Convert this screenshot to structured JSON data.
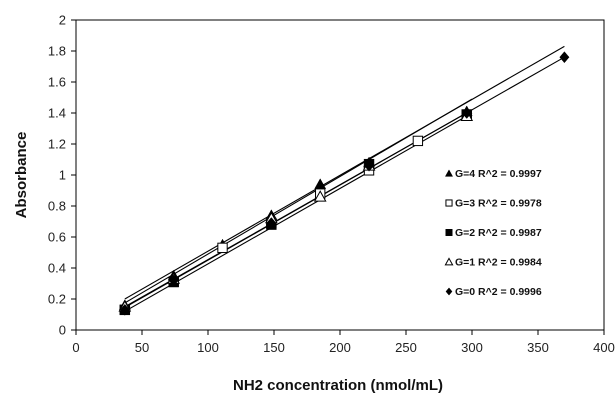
{
  "chart_data": {
    "type": "scatter",
    "xlabel": "NH2 concentration (nmol/mL)",
    "ylabel": "Absorbance",
    "xlim": [
      0,
      400
    ],
    "ylim": [
      0,
      2
    ],
    "x_ticks": [
      "0",
      "50",
      "100",
      "150",
      "200",
      "250",
      "300",
      "350",
      "400"
    ],
    "y_ticks": [
      "0",
      "0.2",
      "0.4",
      "0.6",
      "0.8",
      "1",
      "1.2",
      "1.4",
      "1.6",
      "1.8",
      "2"
    ],
    "grid": false,
    "legend_position": "right",
    "series": [
      {
        "legend": "G=4  R^2 = 0.9997",
        "marker": "filled-triangle",
        "color": "#000000",
        "points": [
          [
            37,
            0.16
          ],
          [
            74,
            0.35
          ],
          [
            111,
            0.55
          ],
          [
            148,
            0.74
          ],
          [
            185,
            0.94
          ],
          [
            222,
            1.08
          ],
          [
            296,
            1.41
          ]
        ],
        "fit": [
          [
            37,
            0.175
          ],
          [
            300,
            1.49
          ]
        ]
      },
      {
        "legend": "G=3  R^2 = 0.9978",
        "marker": "open-square",
        "color": "#000000",
        "points": [
          [
            37,
            0.13
          ],
          [
            74,
            0.31
          ],
          [
            111,
            0.53
          ],
          [
            148,
            0.69
          ],
          [
            185,
            0.88
          ],
          [
            222,
            1.03
          ],
          [
            259,
            1.22
          ],
          [
            296,
            1.39
          ]
        ],
        "fit": [
          [
            37,
            0.15
          ],
          [
            300,
            1.42
          ]
        ]
      },
      {
        "legend": "G=2  R^2 = 0.9987",
        "marker": "filled-square",
        "color": "#000000",
        "points": [
          [
            37,
            0.13
          ],
          [
            74,
            0.31
          ],
          [
            148,
            0.68
          ],
          [
            222,
            1.07
          ],
          [
            296,
            1.39
          ]
        ],
        "fit": [
          [
            37,
            0.12
          ],
          [
            300,
            1.4
          ]
        ]
      },
      {
        "legend": "G=1  R^2 = 0.9984",
        "marker": "open-triangle",
        "color": "#000000",
        "points": [
          [
            37,
            0.15
          ],
          [
            74,
            0.33
          ],
          [
            148,
            0.72
          ],
          [
            185,
            0.86
          ],
          [
            222,
            1.06
          ],
          [
            296,
            1.38
          ]
        ],
        "fit": [
          [
            37,
            0.2
          ],
          [
            370,
            1.83
          ]
        ]
      },
      {
        "legend": "G=0  R^2 = 0.9996",
        "marker": "filled-diamond",
        "color": "#000000",
        "points": [
          [
            37,
            0.13
          ],
          [
            74,
            0.32
          ],
          [
            148,
            0.69
          ],
          [
            222,
            1.06
          ],
          [
            296,
            1.4
          ],
          [
            370,
            1.76
          ]
        ],
        "fit": [
          [
            37,
            0.145
          ],
          [
            370,
            1.76
          ]
        ]
      }
    ]
  }
}
